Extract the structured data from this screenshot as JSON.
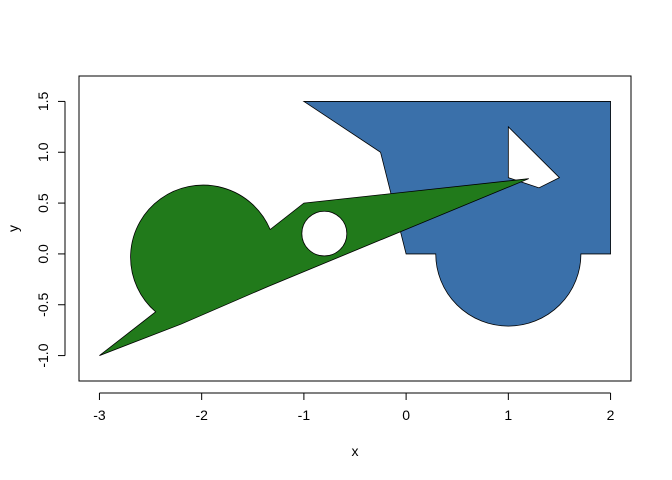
{
  "chart_data": {
    "type": "polygon",
    "title": "",
    "xlabel": "x",
    "ylabel": "y",
    "xlim": [
      -3.2,
      2.2
    ],
    "ylim": [
      -1.25,
      1.75
    ],
    "x_ticks": [
      -3,
      -2,
      -1,
      0,
      1,
      2
    ],
    "y_ticks": [
      -1.0,
      -0.5,
      0.0,
      0.5,
      1.0,
      1.5
    ],
    "x_tick_labels": [
      "-3",
      "-2",
      "-1",
      "0",
      "1",
      "2"
    ],
    "y_tick_labels": [
      "-1.0",
      "-0.5",
      "0.0",
      "0.5",
      "1.0",
      "1.5"
    ],
    "grid": false,
    "shapes": [
      {
        "name": "blue-polygon",
        "fill": "#3a70aa",
        "outer": [
          [
            -1.0,
            1.5
          ],
          [
            2.0,
            1.5
          ],
          [
            2.0,
            0.0
          ],
          [
            1.71,
            0.0
          ],
          {
            "arc": {
              "cx": 1.0,
              "cy": 0.0,
              "r": 0.71,
              "from_deg": 0,
              "to_deg": 180,
              "direction": "below"
            }
          },
          [
            0.29,
            0.0
          ],
          [
            0.0,
            0.0
          ],
          [
            -0.25,
            1.0
          ]
        ],
        "hole": [
          [
            1.0,
            1.25
          ],
          [
            1.5,
            0.75
          ],
          [
            1.3,
            0.65
          ],
          [
            1.0,
            0.75
          ]
        ]
      },
      {
        "name": "green-polygon",
        "fill": "#217a1b",
        "outer": [
          [
            -3.0,
            -1.0
          ],
          [
            -2.45,
            -0.57
          ],
          {
            "circle": {
              "cx": -2.0,
              "cy": 0.0,
              "r": 0.71
            }
          },
          [
            -1.33,
            0.24
          ],
          [
            -1.0,
            0.5
          ],
          [
            1.2,
            0.74
          ],
          [
            -1.35,
            -0.32
          ],
          [
            -2.2,
            -0.69
          ]
        ],
        "hole": {
          "circle": {
            "cx": -0.8,
            "cy": 0.2,
            "r": 0.22
          }
        }
      }
    ]
  }
}
